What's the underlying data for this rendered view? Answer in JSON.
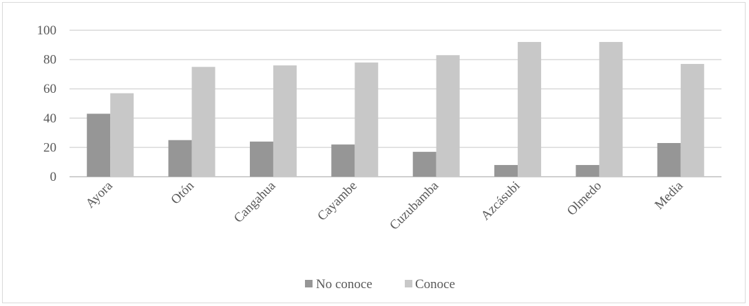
{
  "chart_data": {
    "type": "bar",
    "categories": [
      "Ayora",
      "Otón",
      "Cangahua",
      "Cayambe",
      "Cuzubamba",
      "Azcásubi",
      "Olmedo",
      "Media"
    ],
    "series": [
      {
        "name": "No conoce",
        "values": [
          43,
          25,
          24,
          22,
          17,
          8,
          8,
          23
        ],
        "color": "#969696"
      },
      {
        "name": "Conoce",
        "values": [
          57,
          75,
          76,
          78,
          83,
          92,
          92,
          77
        ],
        "color": "#c8c8c8"
      }
    ],
    "ylim": [
      0,
      100
    ],
    "yticks": [
      0,
      20,
      40,
      60,
      80,
      100
    ],
    "grid": true,
    "legend_position": "bottom",
    "title": "",
    "xlabel": "",
    "ylabel": ""
  }
}
